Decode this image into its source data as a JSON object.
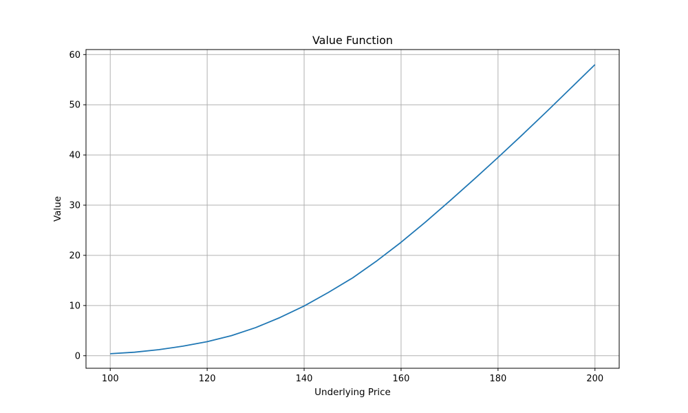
{
  "chart_data": {
    "type": "line",
    "title": "Value Function",
    "xlabel": "Underlying Price",
    "ylabel": "Value",
    "xlim": [
      95,
      205
    ],
    "ylim": [
      -2.5,
      61
    ],
    "xticks": [
      100,
      120,
      140,
      160,
      180,
      200
    ],
    "yticks": [
      0,
      10,
      20,
      30,
      40,
      50,
      60
    ],
    "grid": true,
    "series": [
      {
        "color": "#1f77b4",
        "x": [
          100,
          105,
          110,
          115,
          120,
          125,
          130,
          135,
          140,
          145,
          150,
          155,
          160,
          165,
          170,
          175,
          180,
          185,
          190,
          195,
          200
        ],
        "y": [
          0.4,
          0.7,
          1.2,
          1.9,
          2.8,
          4.0,
          5.6,
          7.6,
          9.9,
          12.6,
          15.5,
          18.9,
          22.6,
          26.6,
          30.8,
          35.1,
          39.5,
          44.0,
          48.6,
          53.3,
          58.0
        ]
      }
    ]
  }
}
